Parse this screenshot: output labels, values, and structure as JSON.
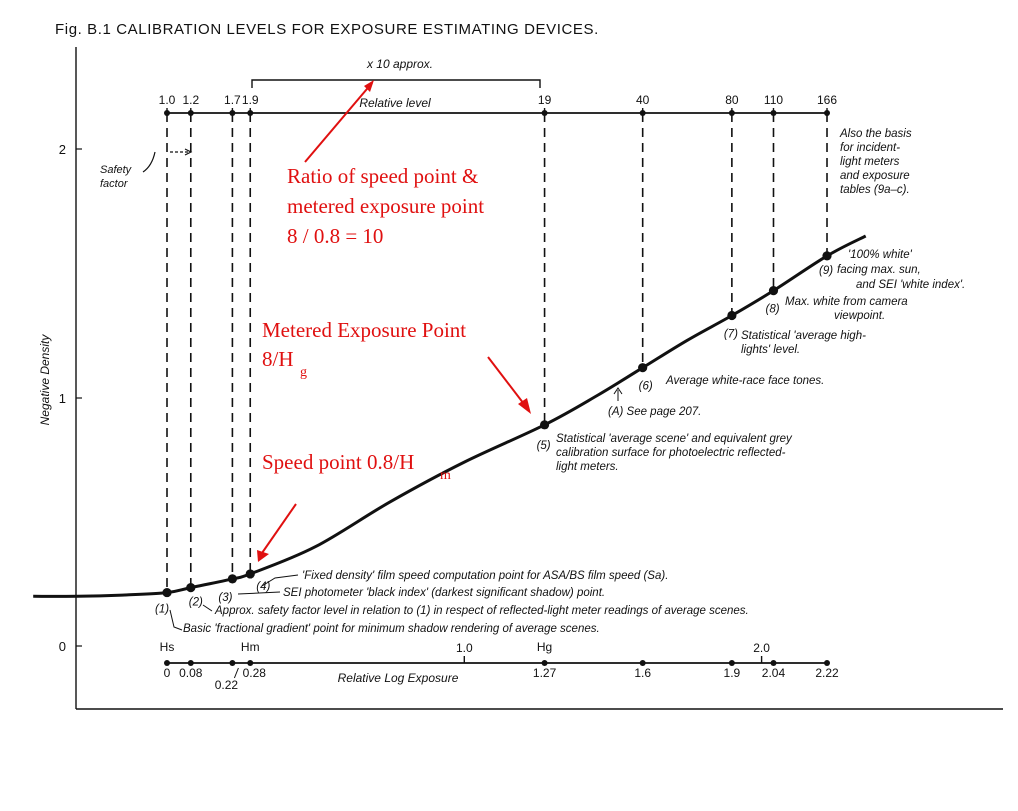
{
  "chart_data": {
    "type": "line",
    "title": "Fig.  B.1  CALIBRATION  LEVELS  FOR  EXPOSURE  ESTIMATING  DEVICES.",
    "ylabel": "Negative Density",
    "xlabel": "Relative Log Exposure",
    "ylim": [
      0,
      2.2
    ],
    "xlim": [
      -0.45,
      2.35
    ],
    "y_ticks": [
      "2",
      "1",
      "0"
    ],
    "grid": false,
    "curve": {
      "x": [
        -0.45,
        -0.3,
        -0.15,
        0.0,
        0.08,
        0.22,
        0.28,
        0.5,
        0.75,
        1.0,
        1.27,
        1.45,
        1.6,
        1.75,
        1.9,
        2.04,
        2.22,
        2.35
      ],
      "y": [
        0.2,
        0.2,
        0.205,
        0.215,
        0.235,
        0.27,
        0.29,
        0.4,
        0.58,
        0.74,
        0.89,
        1.01,
        1.12,
        1.23,
        1.33,
        1.43,
        1.57,
        1.65
      ]
    },
    "points": [
      {
        "label": "(1)",
        "x": 0.0,
        "y": 0.215
      },
      {
        "label": "(2)",
        "x": 0.08,
        "y": 0.235
      },
      {
        "label": "(3)",
        "x": 0.22,
        "y": 0.27
      },
      {
        "label": "(4)",
        "x": 0.28,
        "y": 0.29
      },
      {
        "label": "(5)",
        "x": 1.27,
        "y": 0.89
      },
      {
        "label": "(6)",
        "x": 1.6,
        "y": 1.12
      },
      {
        "label": "(7)",
        "x": 1.9,
        "y": 1.33
      },
      {
        "label": "(8)",
        "x": 2.04,
        "y": 1.43
      },
      {
        "label": "(9)",
        "x": 2.22,
        "y": 1.57
      }
    ],
    "relative_level_scale": {
      "label": "Relative level",
      "ticks": [
        {
          "label": "1.0",
          "x": 0.0
        },
        {
          "label": "1.2",
          "x": 0.08
        },
        {
          "label": "1.7",
          "x": 0.22
        },
        {
          "label": "1.9",
          "x": 0.28
        },
        {
          "label": "19",
          "x": 1.27
        },
        {
          "label": "40",
          "x": 1.6
        },
        {
          "label": "80",
          "x": 1.9
        },
        {
          "label": "110",
          "x": 2.04
        },
        {
          "label": "166",
          "x": 2.22
        }
      ],
      "bracket_label": "x 10 approx."
    },
    "exposure_scale": {
      "ticks": [
        {
          "label": "0",
          "x": 0.0
        },
        {
          "label": "0.08",
          "x": 0.08
        },
        {
          "label": "0.22",
          "x": 0.22
        },
        {
          "label": "0.28",
          "x": 0.28
        },
        {
          "label": "1.0",
          "x": 1.0
        },
        {
          "label": "1.27",
          "x": 1.27
        },
        {
          "label": "1.6",
          "x": 1.6
        },
        {
          "label": "1.9",
          "x": 1.9
        },
        {
          "label": "2.0",
          "x": 2.0
        },
        {
          "label": "2.04",
          "x": 2.04
        },
        {
          "label": "2.22",
          "x": 2.22
        }
      ],
      "markers": [
        {
          "label": "Hs",
          "x": 0.0
        },
        {
          "label": "Hm",
          "x": 0.28
        },
        {
          "label": "Hg",
          "x": 1.27
        }
      ]
    },
    "annotations": {
      "safety_factor": [
        "Safety",
        "factor"
      ],
      "p1": "Basic 'fractional gradient' point for minimum shadow rendering of average scenes.",
      "p2": "Approx. safety factor level in relation to (1) in respect of reflected-light meter readings of average scenes.",
      "p3": "SEI photometer 'black index' (darkest significant shadow) point.",
      "p4": "'Fixed density' film speed computation point for ASA/BS film speed (Sa).",
      "p5": [
        "Statistical 'average scene' and equivalent grey",
        "calibration surface for photoelectric reflected-",
        "light meters."
      ],
      "pA": "(A) See page 207.",
      "p6": "Average white-race face tones.",
      "p7": [
        "Statistical 'average high-",
        "lights' level."
      ],
      "p8": [
        "Max. white from camera",
        "viewpoint."
      ],
      "p9": [
        "'100% white'",
        "facing max. sun,",
        "and SEI 'white index'."
      ],
      "incident": [
        "Also the basis",
        "for incident-",
        "light meters",
        "and exposure",
        "tables (9a–c)."
      ]
    },
    "red_annotations": {
      "ratio": [
        "Ratio of speed point &",
        "metered exposure point",
        "8 / 0.8 = 10"
      ],
      "metered": [
        "Metered Exposure Point",
        "8/H",
        "g"
      ],
      "speed": [
        "Speed point 0.8/H",
        "m"
      ],
      "color": "#e01010"
    }
  }
}
